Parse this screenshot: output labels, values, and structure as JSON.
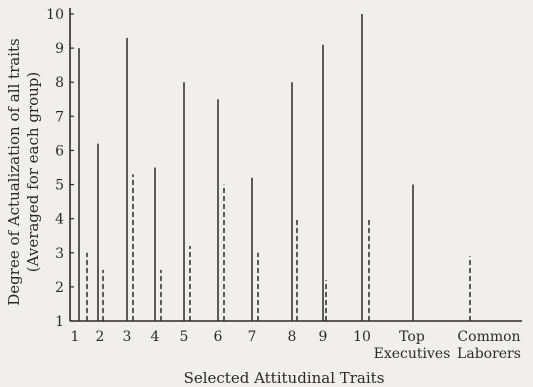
{
  "chart_data": {
    "type": "bar",
    "xlabel": "Selected Attitudinal Traits",
    "ylabel_line1": "Degree of Actualization of all traits",
    "ylabel_line2": "(Averaged for  each group)",
    "ylim": [
      1,
      10
    ],
    "yticks": [
      1,
      2,
      3,
      4,
      5,
      6,
      7,
      8,
      9,
      10
    ],
    "categories": [
      "1",
      "2",
      "3",
      "4",
      "5",
      "6",
      "7",
      "8",
      "9",
      "10",
      "Top Executives",
      "Common Laborers"
    ],
    "category_labels": [
      [
        "1"
      ],
      [
        "2"
      ],
      [
        "3"
      ],
      [
        "4"
      ],
      [
        "5"
      ],
      [
        "6"
      ],
      [
        "7"
      ],
      [
        "8"
      ],
      [
        "9"
      ],
      [
        "10"
      ],
      [
        "Top",
        "Executives"
      ],
      [
        "Common",
        "Laborers"
      ]
    ],
    "series": [
      {
        "style": "solid",
        "values": [
          9.0,
          6.2,
          9.3,
          5.5,
          8.0,
          7.5,
          5.2,
          8.0,
          9.1,
          10.0,
          5.0,
          null
        ]
      },
      {
        "style": "dashed",
        "values": [
          3.0,
          2.5,
          5.3,
          2.5,
          3.2,
          5.0,
          3.0,
          4.0,
          2.2,
          4.0,
          null,
          2.9
        ]
      }
    ]
  }
}
